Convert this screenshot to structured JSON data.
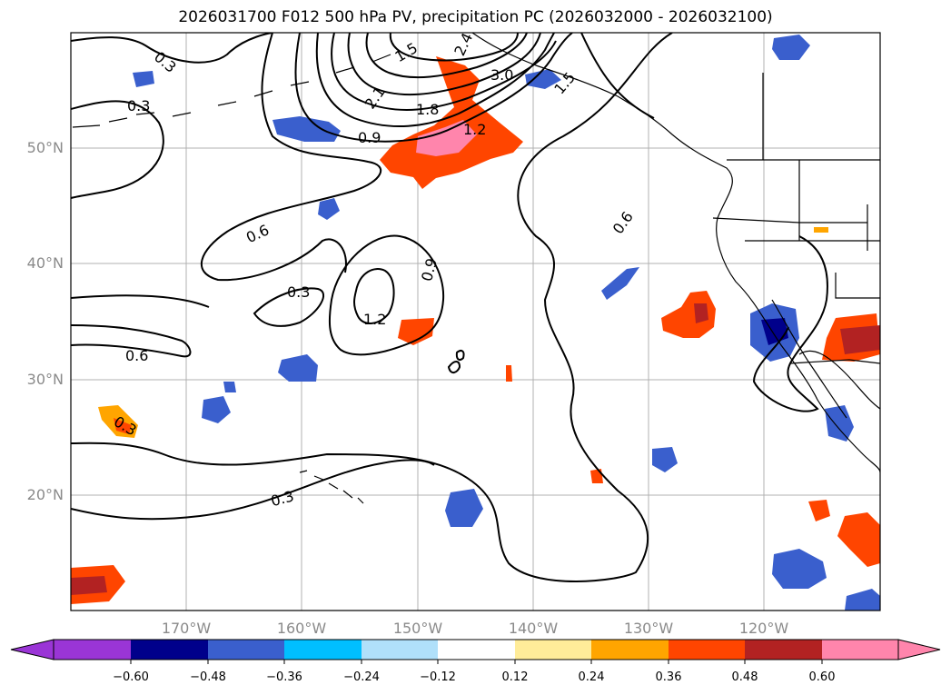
{
  "title": "2026031700 F012 500 hPa PV, precipitation PC (2026032000 - 2026032100)",
  "map": {
    "lat_labels": [
      "50°N",
      "40°N",
      "30°N",
      "20°N"
    ],
    "lon_labels": [
      "170°W",
      "160°W",
      "150°W",
      "140°W",
      "130°W",
      "120°W"
    ],
    "pv_contour_labels": [
      "0.3",
      "0.3",
      "0.6",
      "0.9",
      "1.2",
      "1.8",
      "2.1",
      "3.0",
      "1.5",
      "2.4",
      "1.5",
      "0.9",
      "1.2",
      "0.3",
      "0.6",
      "0.6",
      "0.3",
      "0.3"
    ],
    "colors": {
      "land_lines": "#000000",
      "grid": "#b0b0b0",
      "pv_contour": "#000000"
    }
  },
  "colorbar": {
    "colors": [
      "#9a35d6",
      "#00008b",
      "#3a5fcd",
      "#00bfff",
      "#b0e0fa",
      "#ffffff",
      "#ffec99",
      "#ffa500",
      "#ff4500",
      "#b22222",
      "#ff85ac"
    ],
    "ticks": [
      "−0.60",
      "−0.48",
      "−0.36",
      "−0.24",
      "−0.12",
      "0.12",
      "0.24",
      "0.36",
      "0.48",
      "0.60"
    ]
  }
}
